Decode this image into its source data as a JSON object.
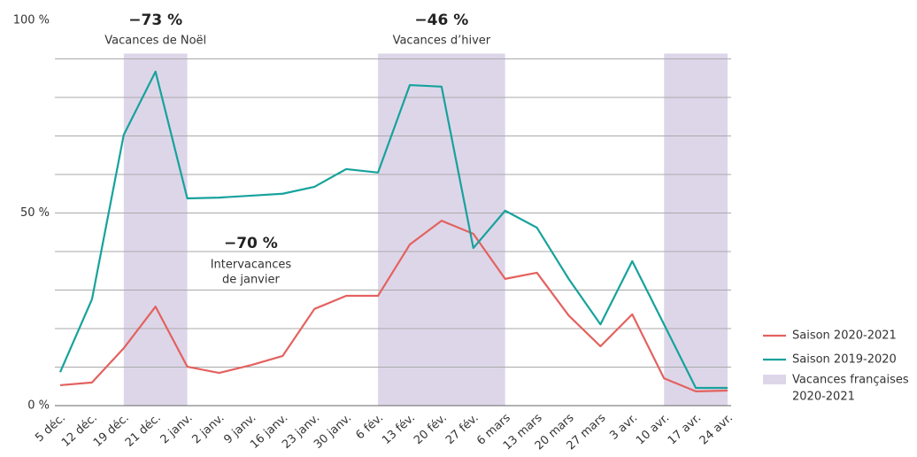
{
  "chart_data": {
    "type": "line",
    "categories": [
      "5 déc.",
      "12 déc.",
      "19 déc.",
      "21 déc.",
      "2 janv.",
      "2 janv.",
      "9 janv.",
      "16 janv.",
      "23 janv.",
      "30 janv.",
      "6 fév.",
      "13 fév.",
      "20 fév.",
      "27 fév.",
      "6 mars",
      "13 mars",
      "20 mars",
      "27 mars",
      "3 avr.",
      "10 avr.",
      "17 avr.",
      "24 avr."
    ],
    "series": [
      {
        "name": "Saison 2020-2021",
        "color": "#e3625f",
        "values": [
          5.3,
          6,
          14.9,
          25.7,
          10.1,
          8.5,
          10.5,
          12.9,
          25.1,
          28.5,
          28.5,
          41.8,
          48,
          44.6,
          32.9,
          34.5,
          23.4,
          15.4,
          23.7,
          7.1,
          3.7,
          3.9
        ]
      },
      {
        "name": "Saison 2019-2020",
        "color": "#17a29c",
        "values": [
          8.7,
          27.6,
          70.3,
          86.7,
          53.8,
          54,
          54.5,
          55,
          56.8,
          61.4,
          60.5,
          83.2,
          82.8,
          40.9,
          50.6,
          46.2,
          32.9,
          21.1,
          37.5,
          21.1,
          4.6,
          4.6
        ]
      }
    ],
    "bands": {
      "name": "Vacances françaises",
      "name2": "2020-2021",
      "color": "#ddd6e9",
      "ranges": [
        {
          "from": 2,
          "to": 4
        },
        {
          "from": 10,
          "to": 14
        },
        {
          "from": 19,
          "to": 21
        }
      ]
    },
    "annotations": [
      {
        "value": "−73 %",
        "text": "Vacances de Noël",
        "at": 3
      },
      {
        "value": "−46 %",
        "text": "Vacances d’hiver",
        "at": 12
      },
      {
        "value": "−70 %",
        "text": "Intervacances",
        "text2": "de janvier",
        "at": 6
      }
    ],
    "ylim": [
      0,
      100
    ],
    "yticks": [
      {
        "value": 0,
        "label": "0 %"
      },
      {
        "value": 50,
        "label": "50 %"
      },
      {
        "value": 100,
        "label": "100 %"
      }
    ],
    "grid_values": [
      10,
      20,
      30,
      40,
      50,
      60,
      70,
      80,
      90
    ],
    "grid": true
  }
}
